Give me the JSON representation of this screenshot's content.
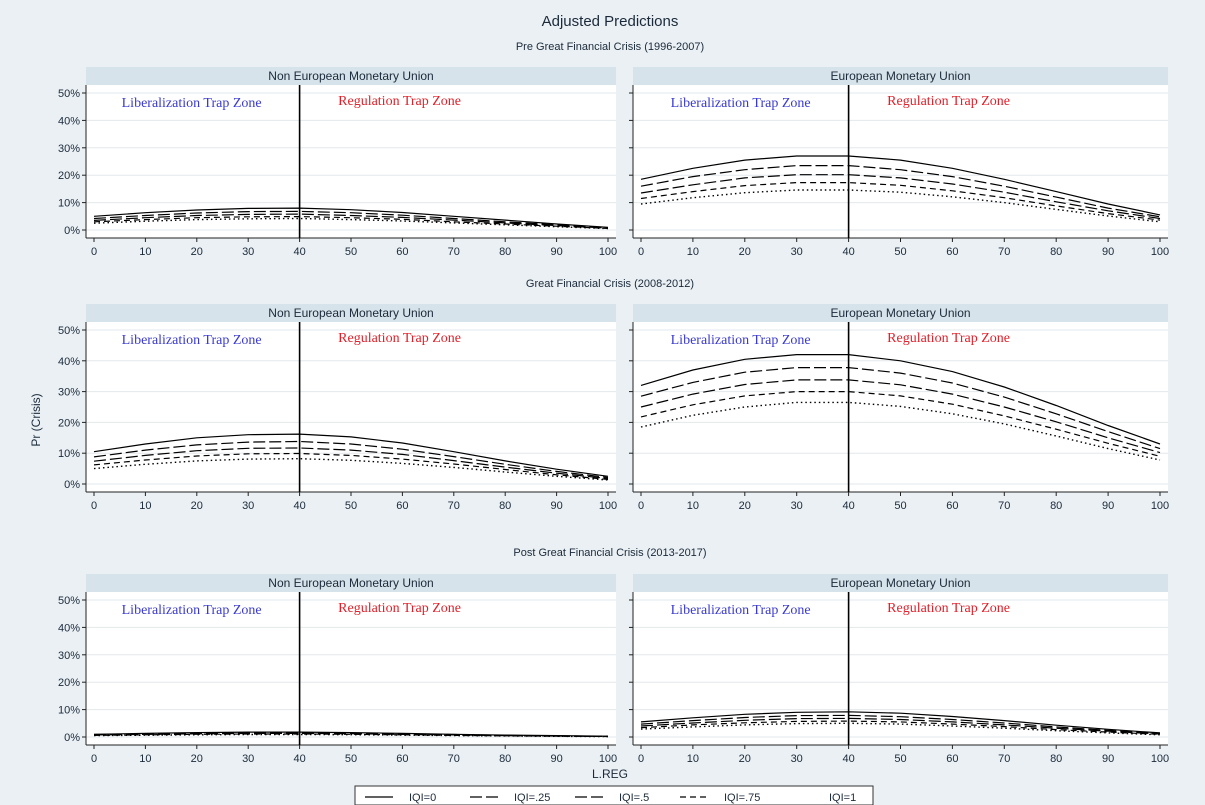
{
  "figure": {
    "title": "Adjusted Predictions",
    "ylabel": "Pr (Crisis)",
    "xlabel": "L.REG",
    "zone_left": "Liberalization Trap Zone",
    "zone_right": "Regulation Trap Zone",
    "colors": {
      "background": "#eaf0f4",
      "plot": "#ffffff",
      "strip": "#d7e3ea",
      "zone_left": "#3a3ad0",
      "zone_right": "#e0202a",
      "line": "#000000"
    },
    "legend": [
      {
        "label": "IQI=0",
        "dash": "solid"
      },
      {
        "label": "IQI=.25",
        "dash": "long-dash"
      },
      {
        "label": "IQI=.5",
        "dash": "long-dash"
      },
      {
        "label": "IQI=.75",
        "dash": "short-dash"
      },
      {
        "label": "IQI=1",
        "dash": "dot"
      }
    ]
  },
  "chart_data": [
    {
      "type": "line",
      "period": "Pre Great Financial Crisis (1996-2007)",
      "group": "Non European Monetary Union",
      "x": [
        0,
        10,
        20,
        30,
        40,
        50,
        60,
        70,
        80,
        90,
        100
      ],
      "xlim": [
        0,
        100
      ],
      "ylim": [
        0,
        50
      ],
      "xticks": [
        0,
        10,
        20,
        30,
        40,
        50,
        60,
        70,
        80,
        90,
        100
      ],
      "yticks": [
        "0%",
        "10%",
        "20%",
        "30%",
        "40%",
        "50%"
      ],
      "vline": 40,
      "grid": true,
      "series": [
        {
          "name": "IQI=0",
          "values": [
            5,
            6.3,
            7.3,
            7.9,
            8,
            7.4,
            6.4,
            5,
            3.6,
            2.2,
            1
          ]
        },
        {
          "name": "IQI=.25",
          "values": [
            4.2,
            5.3,
            6.2,
            6.7,
            6.8,
            6.3,
            5.4,
            4.2,
            3,
            1.9,
            0.8
          ]
        },
        {
          "name": "IQI=.5",
          "values": [
            3.5,
            4.5,
            5.3,
            5.7,
            5.8,
            5.3,
            4.6,
            3.6,
            2.6,
            1.6,
            0.7
          ]
        },
        {
          "name": "IQI=.75",
          "values": [
            3,
            3.8,
            4.5,
            4.8,
            4.9,
            4.5,
            3.9,
            3,
            2.2,
            1.4,
            0.6
          ]
        },
        {
          "name": "IQI=1",
          "values": [
            2.5,
            3.2,
            3.8,
            4.1,
            4.2,
            3.8,
            3.3,
            2.6,
            1.9,
            1.2,
            0.5
          ]
        }
      ]
    },
    {
      "type": "line",
      "period": "Pre Great Financial Crisis (1996-2007)",
      "group": "European Monetary Union",
      "x": [
        0,
        10,
        20,
        30,
        40,
        50,
        60,
        70,
        80,
        90,
        100
      ],
      "xlim": [
        0,
        100
      ],
      "ylim": [
        0,
        50
      ],
      "xticks": [
        0,
        10,
        20,
        30,
        40,
        50,
        60,
        70,
        80,
        90,
        100
      ],
      "yticks": [
        "0%",
        "10%",
        "20%",
        "30%",
        "40%",
        "50%"
      ],
      "vline": 40,
      "grid": true,
      "series": [
        {
          "name": "IQI=0",
          "values": [
            18.5,
            22.5,
            25.5,
            27,
            27,
            25.5,
            22.5,
            18.5,
            14,
            9.5,
            5.5
          ]
        },
        {
          "name": "IQI=.25",
          "values": [
            16,
            19.5,
            22,
            23.5,
            23.5,
            22,
            19.5,
            16,
            12,
            8,
            4.8
          ]
        },
        {
          "name": "IQI=.5",
          "values": [
            13.5,
            16.5,
            19,
            20.2,
            20.2,
            19,
            16.8,
            13.8,
            10.3,
            7,
            4.2
          ]
        },
        {
          "name": "IQI=.75",
          "values": [
            11.5,
            14,
            16.2,
            17.3,
            17.3,
            16.3,
            14.3,
            11.8,
            8.8,
            6,
            3.6
          ]
        },
        {
          "name": "IQI=1",
          "values": [
            9.5,
            11.8,
            13.6,
            14.6,
            14.6,
            13.8,
            12.1,
            10,
            7.5,
            5.1,
            3
          ]
        }
      ]
    },
    {
      "type": "line",
      "period": "Great Financial Crisis (2008-2012)",
      "group": "Non European Monetary Union",
      "x": [
        0,
        10,
        20,
        30,
        40,
        50,
        60,
        70,
        80,
        90,
        100
      ],
      "xlim": [
        0,
        100
      ],
      "ylim": [
        0,
        50
      ],
      "xticks": [
        0,
        10,
        20,
        30,
        40,
        50,
        60,
        70,
        80,
        90,
        100
      ],
      "yticks": [
        "0%",
        "10%",
        "20%",
        "30%",
        "40%",
        "50%"
      ],
      "vline": 40,
      "grid": true,
      "series": [
        {
          "name": "IQI=0",
          "values": [
            10.5,
            13,
            15,
            16,
            16.2,
            15.3,
            13.3,
            10.5,
            7.5,
            4.8,
            2.5
          ]
        },
        {
          "name": "IQI=.25",
          "values": [
            8.8,
            11,
            12.7,
            13.6,
            13.8,
            13,
            11.3,
            8.9,
            6.4,
            4.1,
            2.1
          ]
        },
        {
          "name": "IQI=.5",
          "values": [
            7.4,
            9.3,
            10.8,
            11.6,
            11.7,
            11,
            9.6,
            7.6,
            5.5,
            3.5,
            1.8
          ]
        },
        {
          "name": "IQI=.75",
          "values": [
            6.2,
            7.8,
            9.1,
            9.8,
            9.9,
            9.3,
            8.1,
            6.5,
            4.7,
            3,
            1.5
          ]
        },
        {
          "name": "IQI=1",
          "values": [
            5,
            6.4,
            7.5,
            8.1,
            8.2,
            7.7,
            6.7,
            5.4,
            3.9,
            2.5,
            1.3
          ]
        }
      ]
    },
    {
      "type": "line",
      "period": "Great Financial Crisis (2008-2012)",
      "group": "European Monetary Union",
      "x": [
        0,
        10,
        20,
        30,
        40,
        50,
        60,
        70,
        80,
        90,
        100
      ],
      "xlim": [
        0,
        100
      ],
      "ylim": [
        0,
        50
      ],
      "xticks": [
        0,
        10,
        20,
        30,
        40,
        50,
        60,
        70,
        80,
        90,
        100
      ],
      "yticks": [
        "0%",
        "10%",
        "20%",
        "30%",
        "40%",
        "50%"
      ],
      "vline": 40,
      "grid": true,
      "series": [
        {
          "name": "IQI=0",
          "values": [
            32,
            37,
            40.5,
            42,
            42,
            40,
            36.5,
            31.5,
            25.5,
            19,
            13
          ]
        },
        {
          "name": "IQI=.25",
          "values": [
            28.5,
            33,
            36.3,
            37.8,
            37.8,
            36,
            32.8,
            28.2,
            22.8,
            17,
            11.5
          ]
        },
        {
          "name": "IQI=.5",
          "values": [
            25,
            29.2,
            32.3,
            33.8,
            33.8,
            32.2,
            29.2,
            25,
            20.2,
            15,
            10.2
          ]
        },
        {
          "name": "IQI=.75",
          "values": [
            21.8,
            25.7,
            28.6,
            30,
            30,
            28.6,
            25.9,
            22.1,
            17.8,
            13.2,
            9
          ]
        },
        {
          "name": "IQI=1",
          "values": [
            18.5,
            22.3,
            25,
            26.5,
            26.5,
            25.2,
            22.8,
            19.5,
            15.6,
            11.5,
            7.8
          ]
        }
      ]
    },
    {
      "type": "line",
      "period": "Post Great Financial Crisis (2013-2017)",
      "group": "Non European Monetary Union",
      "x": [
        0,
        10,
        20,
        30,
        40,
        50,
        60,
        70,
        80,
        90,
        100
      ],
      "xlim": [
        0,
        100
      ],
      "ylim": [
        0,
        50
      ],
      "xticks": [
        0,
        10,
        20,
        30,
        40,
        50,
        60,
        70,
        80,
        90,
        100
      ],
      "yticks": [
        "0%",
        "10%",
        "20%",
        "30%",
        "40%",
        "50%"
      ],
      "vline": 40,
      "grid": true,
      "series": [
        {
          "name": "IQI=0",
          "values": [
            1,
            1.3,
            1.6,
            1.8,
            1.8,
            1.6,
            1.3,
            1,
            0.7,
            0.5,
            0.3
          ]
        },
        {
          "name": "IQI=.25",
          "values": [
            0.9,
            1.1,
            1.4,
            1.5,
            1.5,
            1.4,
            1.1,
            0.9,
            0.6,
            0.4,
            0.25
          ]
        },
        {
          "name": "IQI=.5",
          "values": [
            0.75,
            0.95,
            1.15,
            1.3,
            1.3,
            1.2,
            0.95,
            0.75,
            0.5,
            0.35,
            0.2
          ]
        },
        {
          "name": "IQI=.75",
          "values": [
            0.6,
            0.8,
            1,
            1.1,
            1.1,
            1,
            0.8,
            0.6,
            0.45,
            0.3,
            0.18
          ]
        },
        {
          "name": "IQI=1",
          "values": [
            0.5,
            0.65,
            0.8,
            0.9,
            0.9,
            0.85,
            0.7,
            0.5,
            0.4,
            0.25,
            0.15
          ]
        }
      ]
    },
    {
      "type": "line",
      "period": "Post Great Financial Crisis (2013-2017)",
      "group": "European Monetary Union",
      "x": [
        0,
        10,
        20,
        30,
        40,
        50,
        60,
        70,
        80,
        90,
        100
      ],
      "xlim": [
        0,
        100
      ],
      "ylim": [
        0,
        50
      ],
      "xticks": [
        0,
        10,
        20,
        30,
        40,
        50,
        60,
        70,
        80,
        90,
        100
      ],
      "yticks": [
        "0%",
        "10%",
        "20%",
        "30%",
        "40%",
        "50%"
      ],
      "vline": 40,
      "grid": true,
      "series": [
        {
          "name": "IQI=0",
          "values": [
            5.5,
            7,
            8.3,
            9,
            9.2,
            8.7,
            7.5,
            6,
            4.3,
            2.8,
            1.5
          ]
        },
        {
          "name": "IQI=.25",
          "values": [
            4.7,
            6,
            7.1,
            7.8,
            7.9,
            7.4,
            6.4,
            5.1,
            3.7,
            2.4,
            1.3
          ]
        },
        {
          "name": "IQI=.5",
          "values": [
            4,
            5.1,
            6.1,
            6.7,
            6.8,
            6.4,
            5.5,
            4.4,
            3.2,
            2.1,
            1.1
          ]
        },
        {
          "name": "IQI=.75",
          "values": [
            3.4,
            4.4,
            5.2,
            5.7,
            5.8,
            5.5,
            4.7,
            3.8,
            2.7,
            1.8,
            1
          ]
        },
        {
          "name": "IQI=1",
          "values": [
            2.9,
            3.7,
            4.4,
            4.9,
            5,
            4.7,
            4,
            3.2,
            2.3,
            1.5,
            0.8
          ]
        }
      ]
    }
  ]
}
